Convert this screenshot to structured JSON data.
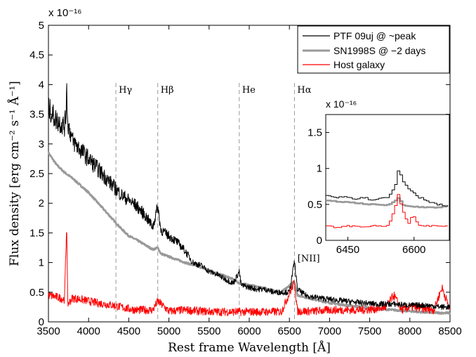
{
  "chart_data": {
    "type": "line",
    "title": "",
    "xlabel": "Rest frame Wavelength [Å]",
    "ylabel": "Flux density [erg cm⁻² s⁻¹ Å⁻¹]",
    "y_exponent": "x 10⁻¹⁶",
    "xlim": [
      3500,
      8500
    ],
    "ylim": [
      0,
      5
    ],
    "xticks": [
      "3500",
      "4000",
      "4500",
      "5000",
      "5500",
      "6000",
      "6500",
      "7000",
      "7500",
      "8000",
      "8500"
    ],
    "yticks": [
      "0",
      "0.5",
      "1",
      "1.5",
      "2",
      "2.5",
      "3",
      "3.5",
      "4",
      "4.5",
      "5"
    ],
    "grid": false,
    "legend_position": "top-right",
    "legend": [
      "PTF 09uj @ ~peak",
      "SN1998S @ −2 days",
      "Host galaxy"
    ],
    "colors": {
      "ptf": "#000000",
      "sn": "#999999",
      "host": "#ff0000",
      "lines": "#999999"
    },
    "line_markers": [
      {
        "label": "Hγ",
        "x": 4340
      },
      {
        "label": "Hβ",
        "x": 4861
      },
      {
        "label": "He",
        "x": 5876
      },
      {
        "label": "Hα",
        "x": 6563
      },
      {
        "label": "[NII]",
        "x": 6584
      }
    ],
    "series": [
      {
        "name": "PTF 09uj @ ~peak",
        "x": [
          3500,
          3600,
          3700,
          3720,
          3727,
          3735,
          3800,
          3900,
          4000,
          4100,
          4200,
          4300,
          4400,
          4500,
          4600,
          4700,
          4800,
          4861,
          4900,
          5000,
          5100,
          5200,
          5300,
          5400,
          5500,
          5600,
          5700,
          5800,
          5876,
          5900,
          6000,
          6100,
          6200,
          6300,
          6400,
          6500,
          6563,
          6600,
          6700,
          6800,
          6900,
          7000,
          7200,
          7400,
          7600,
          7800,
          8000,
          8200,
          8400,
          8500
        ],
        "y": [
          3.6,
          3.4,
          3.3,
          3.5,
          4.2,
          3.4,
          3.05,
          2.9,
          2.75,
          2.6,
          2.45,
          2.3,
          2.15,
          2.05,
          1.95,
          1.8,
          1.6,
          1.95,
          1.55,
          1.45,
          1.35,
          1.2,
          1.0,
          0.95,
          0.85,
          0.8,
          0.72,
          0.65,
          0.85,
          0.62,
          0.58,
          0.55,
          0.55,
          0.5,
          0.5,
          0.5,
          1.02,
          0.55,
          0.45,
          0.42,
          0.4,
          0.38,
          0.35,
          0.32,
          0.3,
          0.3,
          0.28,
          0.28,
          0.25,
          0.25
        ]
      },
      {
        "name": "SN1998S @ −2 days",
        "x": [
          3500,
          3600,
          3700,
          3800,
          3900,
          4000,
          4100,
          4200,
          4300,
          4400,
          4500,
          4600,
          4700,
          4800,
          4861,
          4900,
          5000,
          5200,
          5400,
          5600,
          5800,
          5876,
          6000,
          6200,
          6400,
          6563,
          6600,
          6800,
          7000,
          7200,
          7400,
          7600,
          7800,
          8000,
          8200,
          8400,
          8500
        ],
        "y": [
          2.85,
          2.65,
          2.52,
          2.42,
          2.3,
          2.18,
          2.03,
          1.88,
          1.73,
          1.58,
          1.45,
          1.38,
          1.3,
          1.22,
          1.25,
          1.15,
          1.1,
          1.0,
          0.92,
          0.82,
          0.72,
          0.65,
          0.62,
          0.56,
          0.5,
          0.68,
          0.45,
          0.38,
          0.32,
          0.28,
          0.25,
          0.22,
          0.2,
          0.18,
          0.16,
          0.15,
          0.15
        ]
      },
      {
        "name": "Host galaxy",
        "x": [
          3500,
          3600,
          3700,
          3727,
          3740,
          3800,
          3900,
          4000,
          4100,
          4200,
          4300,
          4400,
          4500,
          4600,
          4800,
          4861,
          5000,
          5200,
          5400,
          5600,
          5800,
          6000,
          6200,
          6400,
          6563,
          6600,
          6800,
          7000,
          7200,
          7400,
          7600,
          7700,
          7800,
          7900,
          8000,
          8200,
          8300,
          8400,
          8500
        ],
        "y": [
          0.45,
          0.42,
          0.38,
          1.67,
          0.3,
          0.4,
          0.38,
          0.35,
          0.32,
          0.3,
          0.28,
          0.25,
          0.22,
          0.2,
          0.2,
          0.35,
          0.18,
          0.2,
          0.18,
          0.17,
          0.17,
          0.17,
          0.17,
          0.17,
          0.67,
          0.18,
          0.18,
          0.2,
          0.2,
          0.2,
          0.22,
          0.25,
          0.45,
          0.2,
          0.25,
          0.22,
          0.2,
          0.58,
          0.2
        ]
      }
    ],
    "inset": {
      "xlim": [
        6400,
        6680
      ],
      "ylim": [
        0,
        1.75
      ],
      "xticks": [
        "6450",
        "6600"
      ],
      "yticks": [
        "0",
        "0.5",
        "1",
        "1.5"
      ],
      "y_exponent": "x 10⁻¹⁶",
      "series": [
        {
          "name": "PTF 09uj @ ~peak",
          "x": [
            6400,
            6420,
            6440,
            6460,
            6480,
            6500,
            6520,
            6540,
            6555,
            6563,
            6575,
            6590,
            6610,
            6630,
            6650,
            6670,
            6680
          ],
          "y": [
            0.62,
            0.6,
            0.62,
            0.58,
            0.6,
            0.57,
            0.58,
            0.6,
            0.75,
            1.0,
            0.8,
            0.7,
            0.6,
            0.55,
            0.5,
            0.48,
            0.5
          ]
        },
        {
          "name": "SN1998S @ −2 days",
          "x": [
            6400,
            6450,
            6500,
            6540,
            6555,
            6563,
            6572,
            6590,
            6620,
            6650,
            6680
          ],
          "y": [
            0.55,
            0.53,
            0.5,
            0.49,
            0.55,
            0.6,
            0.5,
            0.47,
            0.46,
            0.46,
            0.47
          ]
        },
        {
          "name": "Host galaxy",
          "x": [
            6400,
            6420,
            6450,
            6480,
            6510,
            6540,
            6555,
            6563,
            6570,
            6585,
            6595,
            6610,
            6640,
            6680
          ],
          "y": [
            0.2,
            0.18,
            0.2,
            0.19,
            0.2,
            0.2,
            0.45,
            0.67,
            0.45,
            0.22,
            0.35,
            0.2,
            0.2,
            0.2
          ]
        }
      ]
    }
  }
}
